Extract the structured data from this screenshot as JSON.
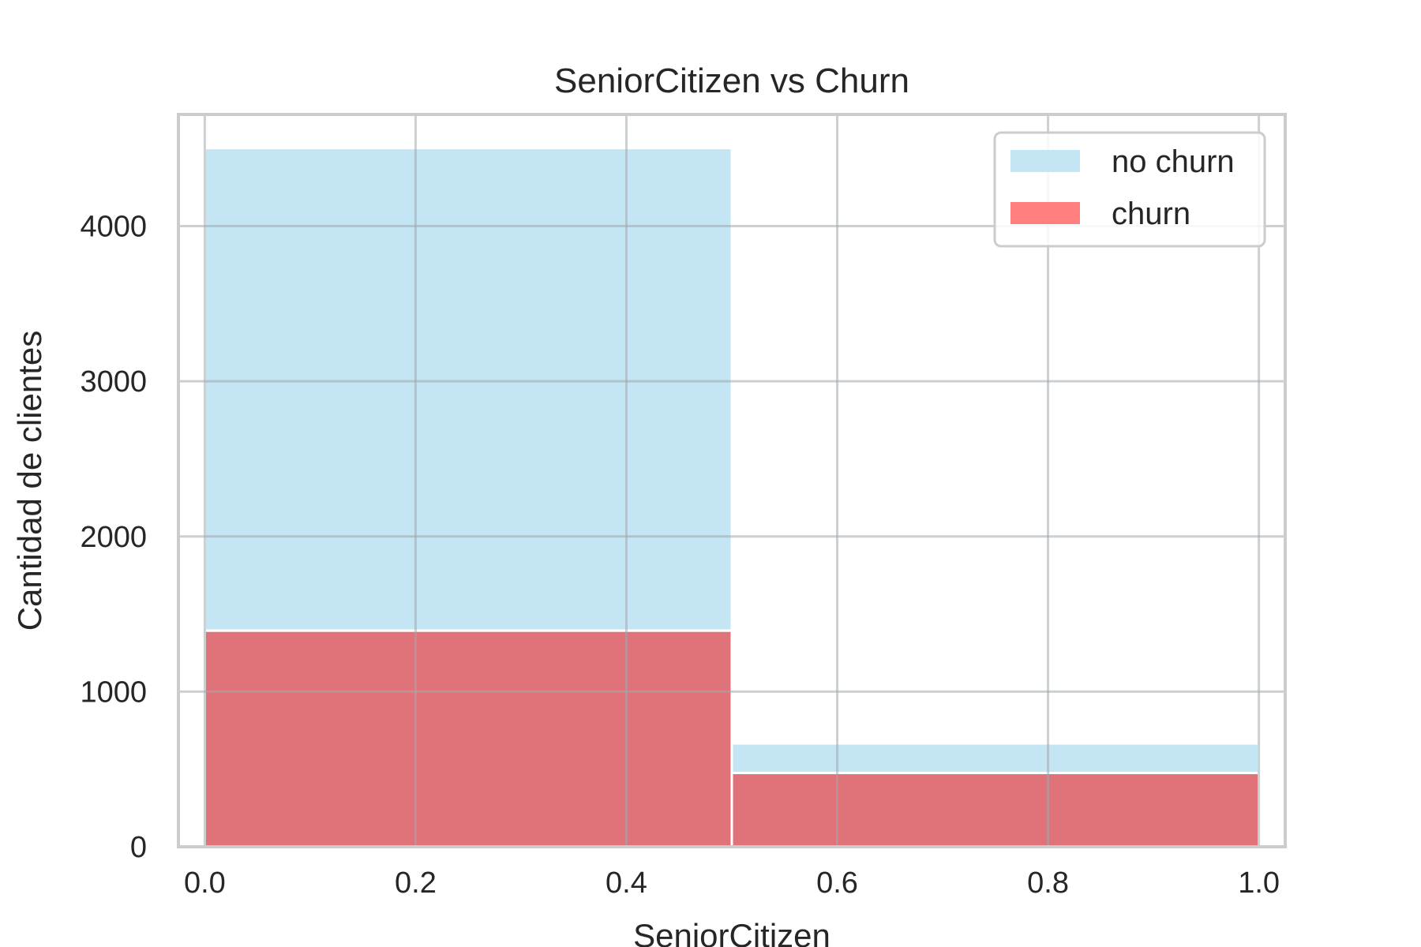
{
  "chart_data": {
    "type": "bar",
    "subtype": "stacked-histogram",
    "title": "SeniorCitizen vs Churn",
    "xlabel": "SeniorCitizen",
    "ylabel": "Cantidad de clientes",
    "xlim": [
      -0.025,
      1.025
    ],
    "ylim": [
      0,
      4720
    ],
    "x_ticks": [
      0.0,
      0.2,
      0.4,
      0.6,
      0.8,
      1.0
    ],
    "x_tick_labels": [
      "0.0",
      "0.2",
      "0.4",
      "0.6",
      "0.8",
      "1.0"
    ],
    "y_ticks": [
      0,
      1000,
      2000,
      3000,
      4000
    ],
    "y_tick_labels": [
      "0",
      "1000",
      "2000",
      "3000",
      "4000"
    ],
    "grid": true,
    "legend_position": "top-right",
    "bins": [
      {
        "x0": 0.0,
        "x1": 0.5
      },
      {
        "x0": 0.5,
        "x1": 1.0
      }
    ],
    "series": [
      {
        "name": "churn",
        "color": "#e0727a",
        "legend_color": "#ff7f7f",
        "values": [
          1393,
          476
        ]
      },
      {
        "name": "no churn",
        "color": "#c3e5f4",
        "legend_color": "#c3e5f4",
        "values": [
          3110,
          190
        ]
      }
    ],
    "legend": [
      {
        "name": "no churn",
        "color": "#c3e5f4"
      },
      {
        "name": "churn",
        "color": "#ff7f7f"
      }
    ]
  }
}
